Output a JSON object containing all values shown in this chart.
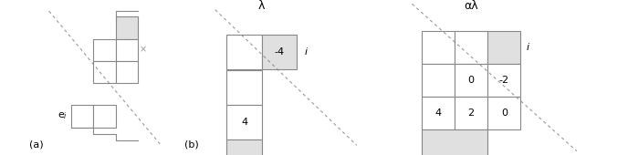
{
  "fig_width": 6.88,
  "fig_height": 1.7,
  "dpi": 100,
  "bg_color": "#ffffff",
  "light_gray": "#e0e0e0",
  "box_edge": "#888888",
  "label_a": "(a)",
  "label_b": "(b)",
  "label_lambda": "λ",
  "label_alpha_lambda": "αλ",
  "label_i": "i",
  "label_x": "×",
  "val_neg4": "-4",
  "val_4a": "4",
  "val_0a": "0",
  "val_neg2": "-2",
  "val_4b": "4",
  "val_2": "2",
  "val_0b": "0"
}
